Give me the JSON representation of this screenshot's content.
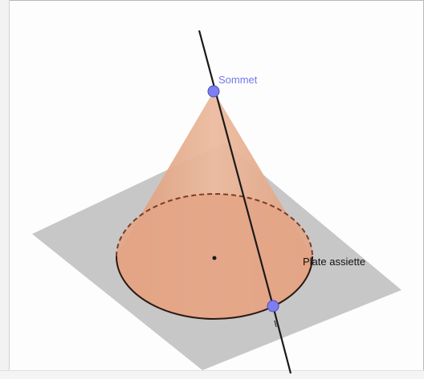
{
  "labels": {
    "vertex": "Sommet",
    "plane": "Plate assiette"
  },
  "colors": {
    "cone_fill": "#e2a383",
    "cone_fill_dark": "#c97f5e",
    "plane_fill": "#bdbdbd",
    "point_fill": "#7d7ef0",
    "vertex_label": "#7777ee",
    "line": "#1a1a1a"
  }
}
